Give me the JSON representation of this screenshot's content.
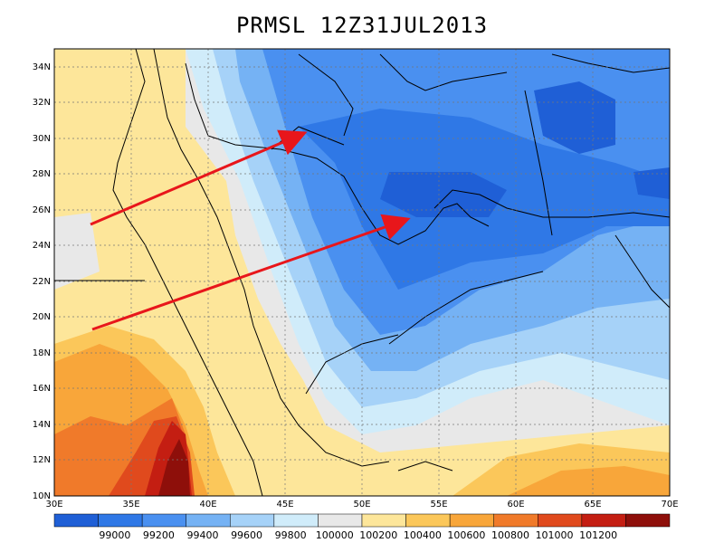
{
  "title": "PRMSL 12Z31JUL2013",
  "axes": {
    "lat_labels": [
      "34N",
      "32N",
      "30N",
      "28N",
      "26N",
      "24N",
      "22N",
      "20N",
      "18N",
      "16N",
      "14N",
      "12N",
      "10N"
    ],
    "lon_labels": [
      "30E",
      "35E",
      "40E",
      "45E",
      "50E",
      "55E",
      "60E",
      "65E",
      "70E"
    ]
  },
  "colorbar": {
    "labels": [
      "99000",
      "99200",
      "99400",
      "99600",
      "99800",
      "100000",
      "100200",
      "100400",
      "100600",
      "100800",
      "101000",
      "101200"
    ],
    "colors": [
      "#1f5fd6",
      "#2f78e6",
      "#4a90f0",
      "#75b2f4",
      "#a6d2f8",
      "#d0ecfa",
      "#e8e8e8",
      "#fde69a",
      "#fbc75a",
      "#f8a63a",
      "#f07a2a",
      "#e04a1d",
      "#c41e12",
      "#8e0f0a"
    ]
  },
  "annotations": {
    "arrow_color": "#e8161b",
    "arrow_count": 2
  }
}
